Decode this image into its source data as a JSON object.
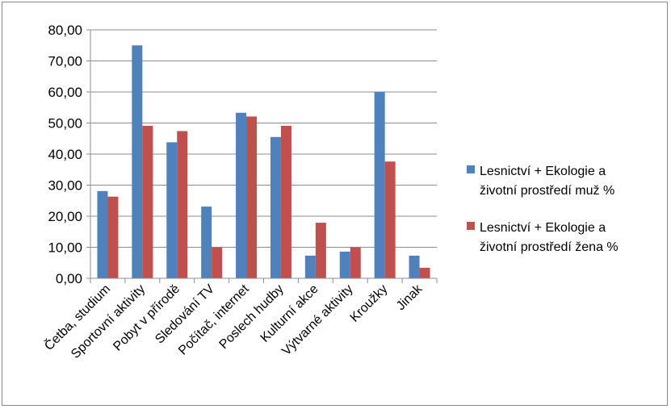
{
  "chart_data": {
    "type": "bar",
    "categories": [
      "Četba, studium",
      "Sportovní aktivity",
      "Pobyt v přírodě",
      "Sledování TV",
      "Počítač, internet",
      "Poslech hudby",
      "Kulturní akce",
      "Výtvarné aktivity",
      "Kroužky",
      "Jinak"
    ],
    "series": [
      {
        "name": "Lesnictví + Ekologie a životní prostředí muž %",
        "legend_lines": [
          "Lesnictví + Ekologie a",
          "životní prostředí muž %"
        ],
        "color": "#4f81bd",
        "values": [
          28.1,
          75.0,
          43.8,
          23.1,
          53.3,
          45.5,
          7.3,
          8.6,
          60.0,
          7.3
        ]
      },
      {
        "name": "Lesnictví + Ekologie a životní prostředí žena %",
        "legend_lines": [
          "Lesnictví + Ekologie a",
          "životní prostředí žena %"
        ],
        "color": "#c0504d",
        "values": [
          26.3,
          49.1,
          47.4,
          10.0,
          52.1,
          49.1,
          17.9,
          10.0,
          37.6,
          3.4
        ]
      }
    ],
    "ylim": [
      0,
      80
    ],
    "yticks": [
      0,
      10,
      20,
      30,
      40,
      50,
      60,
      70,
      80
    ],
    "ytick_labels": [
      "0,00",
      "10,00",
      "20,00",
      "30,00",
      "40,00",
      "50,00",
      "60,00",
      "70,00",
      "80,00"
    ],
    "grid": true,
    "legend_position": "right",
    "title": "",
    "xlabel": "",
    "ylabel": ""
  }
}
